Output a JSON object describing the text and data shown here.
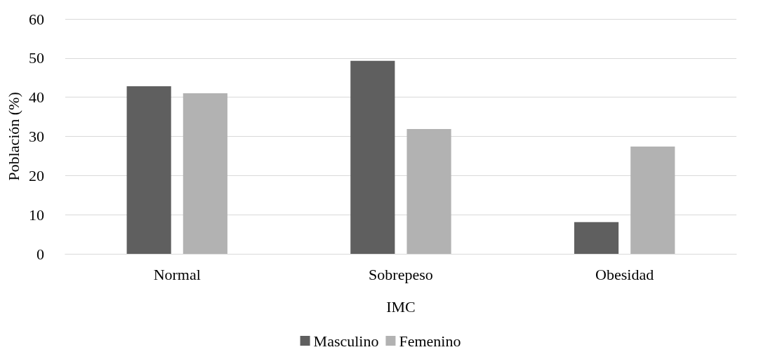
{
  "chart_data": {
    "type": "bar",
    "xlabel": "IMC",
    "ylabel": "Población (%)",
    "categories": [
      "Normal",
      "Sobrepeso",
      "Obesidad"
    ],
    "series": [
      {
        "name": "Masculino",
        "color": "#5f5f5f",
        "values": [
          42.8,
          49.3,
          8.1
        ]
      },
      {
        "name": "Femenino",
        "color": "#b2b2b2",
        "values": [
          41.0,
          31.9,
          27.4
        ]
      }
    ],
    "ylim": [
      0,
      60
    ],
    "yticks": [
      0,
      10,
      20,
      30,
      40,
      50,
      60
    ],
    "grid": "y",
    "legend": "bottom"
  }
}
